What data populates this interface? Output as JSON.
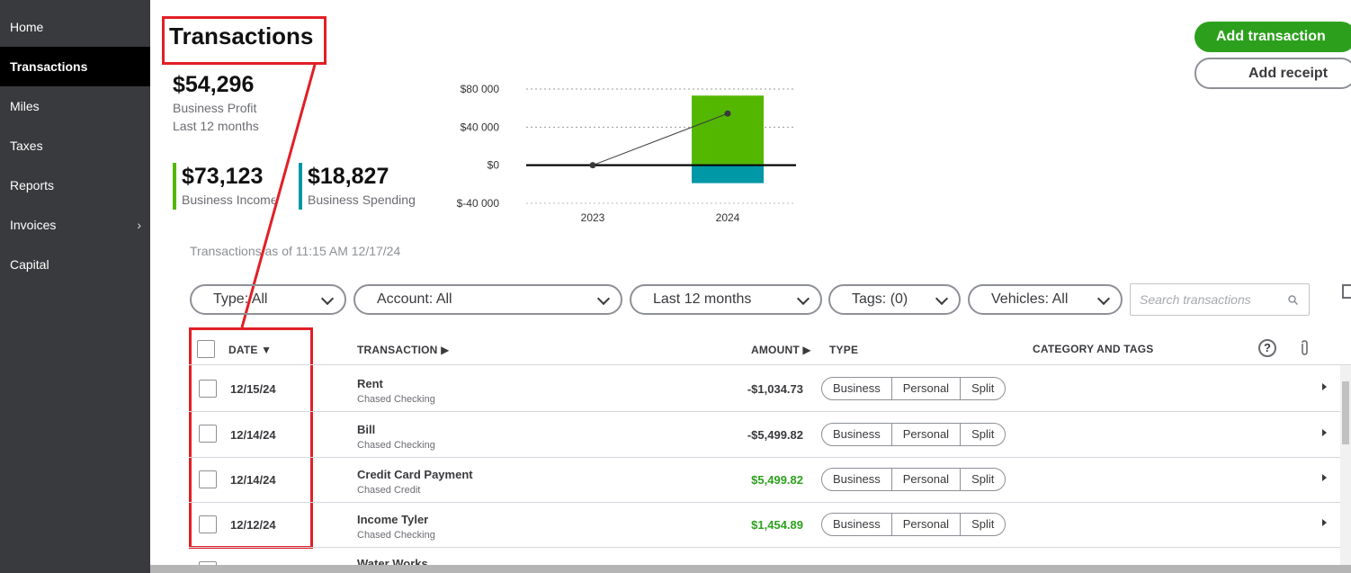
{
  "sidebar": {
    "items": [
      {
        "label": "Home"
      },
      {
        "label": "Transactions"
      },
      {
        "label": "Miles"
      },
      {
        "label": "Taxes"
      },
      {
        "label": "Reports"
      },
      {
        "label": "Invoices"
      },
      {
        "label": "Capital"
      }
    ],
    "active": "Transactions"
  },
  "header": {
    "title": "Transactions",
    "profit": {
      "value": "$54,296",
      "label": "Business Profit",
      "period": "Last 12 months"
    },
    "income": {
      "value": "$73,123",
      "label": "Business Income",
      "color": "#53b700"
    },
    "spending": {
      "value": "$18,827",
      "label": "Business Spending",
      "color": "#0097a7"
    }
  },
  "buttons": {
    "add_transaction": "Add transaction",
    "add_receipt": "Add receipt"
  },
  "chart_data": {
    "type": "bar",
    "categories": [
      "2023",
      "2024"
    ],
    "series": [
      {
        "values": [
          0,
          73123
        ],
        "color": "#53b700"
      },
      {
        "values": [
          0,
          -18827
        ],
        "color": "#0097a7"
      }
    ],
    "line": {
      "values": [
        0,
        54296
      ],
      "color": "#393a3d"
    },
    "y_ticks": [
      "$80 000",
      "$40 000",
      "$0",
      "$-40 000"
    ],
    "ylim": [
      -40000,
      80000
    ],
    "grid": true
  },
  "as_of": "Transactions as of 11:15 AM 12/17/24",
  "filters": {
    "type": "Type: All",
    "account": "Account: All",
    "period": "Last 12 months",
    "tags": "Tags: (0)",
    "vehicles": "Vehicles: All",
    "search_placeholder": "Search transactions"
  },
  "table": {
    "columns": {
      "date": "DATE",
      "transaction": "TRANSACTION",
      "amount": "AMOUNT",
      "type": "TYPE",
      "category": "CATEGORY AND TAGS"
    },
    "type_options": [
      "Business",
      "Personal",
      "Split"
    ],
    "rows": [
      {
        "date": "12/15/24",
        "name": "Rent",
        "account": "Chased Checking",
        "amount": "-$1,034.73",
        "positive": false
      },
      {
        "date": "12/14/24",
        "name": "Bill",
        "account": "Chased Checking",
        "amount": "-$5,499.82",
        "positive": false
      },
      {
        "date": "12/14/24",
        "name": "Credit Card Payment",
        "account": "Chased Credit",
        "amount": "$5,499.82",
        "positive": true
      },
      {
        "date": "12/12/24",
        "name": "Income Tyler",
        "account": "Chased Checking",
        "amount": "$1,454.89",
        "positive": true
      },
      {
        "name": "Water Works"
      }
    ]
  }
}
